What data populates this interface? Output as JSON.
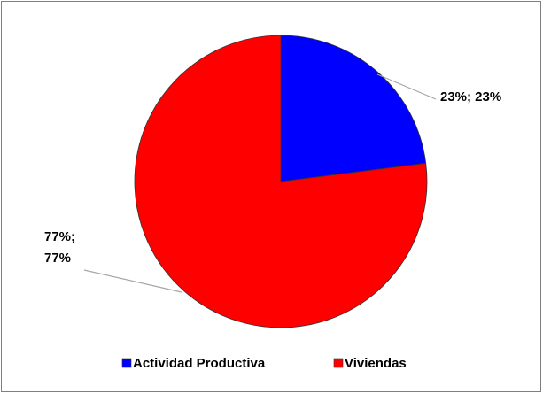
{
  "chart_data": {
    "type": "pie",
    "categories": [
      "Actividad Productiva",
      "Viviendas"
    ],
    "values": [
      23,
      77
    ],
    "value_labels": [
      "23%; 23%",
      "77%; 77%"
    ],
    "colors": [
      "#0000ff",
      "#ff0000"
    ],
    "legend": "bottom"
  }
}
